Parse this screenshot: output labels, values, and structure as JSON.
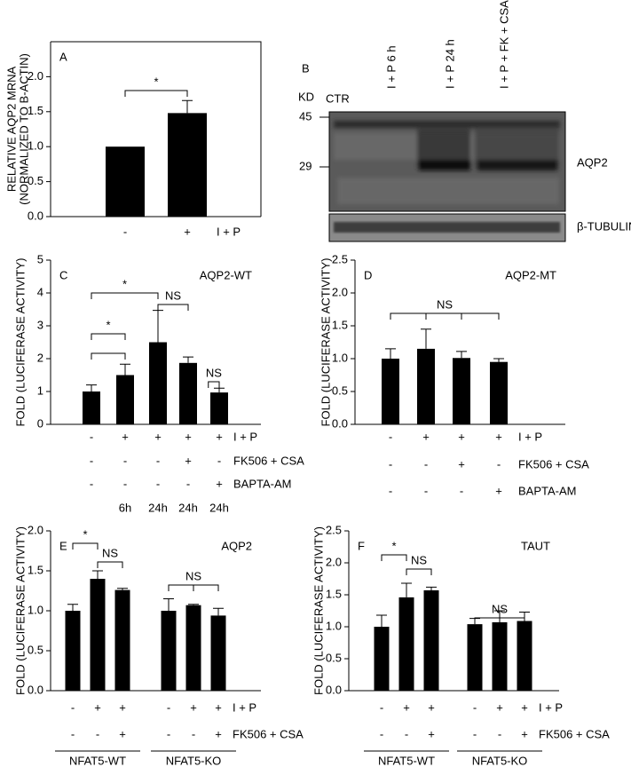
{
  "chart_data": [
    {
      "type": "bar",
      "panel": "A",
      "y_label": [
        "RELATIVE AQP2 MRNA",
        "(NORMALIZED TO B-ACTIN)"
      ],
      "ylim": [
        0,
        2.5
      ],
      "yticks": [
        {
          "value": 0,
          "label": "0.0"
        },
        {
          "value": 0.5,
          "label": "0.5"
        },
        {
          "value": 1,
          "label": "1.0"
        },
        {
          "value": 1.5,
          "label": "1.5"
        },
        {
          "value": 2,
          "label": "2.0"
        }
      ],
      "values": [
        1.0,
        1.48
      ],
      "errors": [
        0,
        0.18
      ],
      "color": "#000000",
      "conditions": [
        {
          "name": "I + P",
          "labels": [
            "-",
            "+"
          ]
        }
      ],
      "annotations": [
        "*"
      ]
    },
    {
      "type": "bar",
      "panel": "C",
      "title": "AQP2-WT",
      "y_label": [
        "FOLD (LUCIFERASE ACTIVITY)"
      ],
      "ylim": [
        0,
        5
      ],
      "yticks": [
        0,
        1,
        2,
        3,
        4,
        5
      ],
      "values": [
        1.0,
        1.5,
        2.5,
        1.87,
        0.97
      ],
      "errors": [
        0.2,
        0.33,
        0.97,
        0.18,
        0.13
      ],
      "color": "#000000",
      "conditions": [
        {
          "name": "I + P",
          "labels": [
            "-",
            "+",
            "+",
            "+",
            "+"
          ]
        },
        {
          "name": "FK506 + CSA",
          "labels": [
            "-",
            "-",
            "-",
            "+",
            "-"
          ]
        },
        {
          "name": "BAPTA-AM",
          "labels": [
            "-",
            "-",
            "-",
            "-",
            "+"
          ]
        },
        {
          "labels": [
            null,
            "6h",
            "24h",
            "24h",
            "24h"
          ]
        }
      ],
      "annotations": [
        "*",
        "*",
        "NS",
        "NS"
      ]
    },
    {
      "type": "bar",
      "panel": "D",
      "title": "AQP2-MT",
      "y_label": [
        "FOLD (LUCIFERASE ACTIVITY)"
      ],
      "ylim": [
        0,
        2.5
      ],
      "yticks": [
        {
          "value": 0,
          "label": "0.0"
        },
        {
          "value": 0.5,
          "label": "0.5"
        },
        {
          "value": 1,
          "label": "1.0"
        },
        {
          "value": 1.5,
          "label": "1.5"
        },
        {
          "value": 2,
          "label": "2.0"
        },
        {
          "value": 2.5,
          "label": "2.5"
        }
      ],
      "values": [
        1.0,
        1.15,
        1.01,
        0.95
      ],
      "errors": [
        0.15,
        0.3,
        0.1,
        0.05
      ],
      "color": "#000000",
      "conditions": [
        {
          "name": "I + P",
          "labels": [
            "-",
            "+",
            "+",
            "+"
          ]
        },
        {
          "name": "FK506 + CSA",
          "labels": [
            "-",
            "-",
            "+",
            "-"
          ]
        },
        {
          "name": "BAPTA-AM",
          "labels": [
            "-",
            "-",
            "-",
            "+"
          ]
        }
      ],
      "annotations": [
        "NS"
      ]
    },
    {
      "type": "bar",
      "panel": "E",
      "title": "AQP2",
      "y_label": [
        "FOLD (LUCIFERASE ACTIVITY)"
      ],
      "ylim": [
        0,
        2
      ],
      "yticks": [
        {
          "value": 0,
          "label": "0.0"
        },
        {
          "value": 0.5,
          "label": "0.5"
        },
        {
          "value": 1,
          "label": "1.0"
        },
        {
          "value": 1.5,
          "label": "1.5"
        },
        {
          "value": 2,
          "label": "2.0"
        }
      ],
      "values": [
        1.0,
        1.4,
        1.26,
        1.0,
        1.07,
        0.94
      ],
      "errors": [
        0.08,
        0.1,
        0.02,
        0.15,
        0.01,
        0.09
      ],
      "color": "#000000",
      "conditions": [
        {
          "name": "I + P",
          "labels": [
            "-",
            "+",
            "+",
            "-",
            "+",
            "+"
          ]
        },
        {
          "name": "FK506 + CSA",
          "labels": [
            "-",
            "-",
            "+",
            "-",
            "-",
            "+"
          ]
        }
      ],
      "annotations": [
        "*",
        "NS",
        "NS"
      ],
      "groups": [
        "NFAT5-WT",
        "NFAT5-KO"
      ]
    },
    {
      "type": "bar",
      "panel": "F",
      "title": "TAUT",
      "y_label": [
        "FOLD (LUCIFERASE ACTIVITY)"
      ],
      "ylim": [
        0,
        2.5
      ],
      "yticks": [
        {
          "value": 0,
          "label": "0.0"
        },
        {
          "value": 0.5,
          "label": "0.5"
        },
        {
          "value": 1,
          "label": "1.0"
        },
        {
          "value": 1.5,
          "label": "1.5"
        },
        {
          "value": 2,
          "label": "2.0"
        },
        {
          "value": 2.5,
          "label": "2.5"
        }
      ],
      "values": [
        1.0,
        1.46,
        1.57,
        1.04,
        1.07,
        1.09
      ],
      "errors": [
        0.18,
        0.22,
        0.05,
        0.09,
        0.18,
        0.14
      ],
      "color": "#000000",
      "conditions": [
        {
          "name": "I + P",
          "labels": [
            "-",
            "+",
            "+",
            "-",
            "+",
            "+"
          ]
        },
        {
          "name": "FK506 + CSA",
          "labels": [
            "-",
            "-",
            "+",
            "-",
            "-",
            "+"
          ]
        }
      ],
      "annotations": [
        "*",
        "NS",
        "NS"
      ],
      "groups": [
        "NFAT5-WT",
        "NFAT5-KO"
      ]
    }
  ],
  "blot": {
    "panel": "B",
    "kd": "KD",
    "markers": [
      "45",
      "29"
    ],
    "lanes": [
      "CTR",
      "I + P 6 h",
      "I + P 24 h",
      "I + P + FK + CSA"
    ],
    "bands": [
      "AQP2",
      "β-TUBULIN"
    ]
  }
}
